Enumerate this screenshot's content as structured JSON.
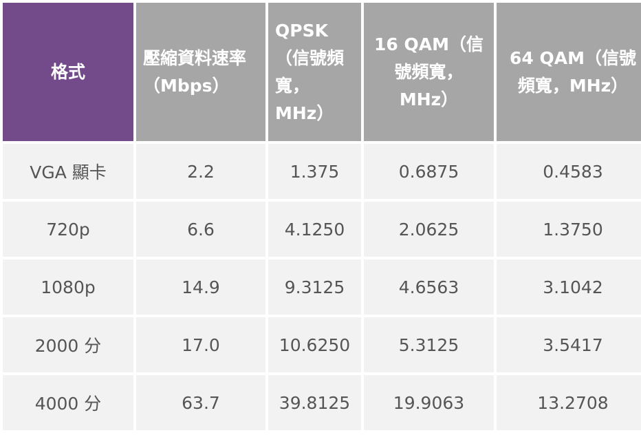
{
  "table": {
    "headers": [
      "格式",
      "壓縮資料速率（Mbps）",
      "QPSK（信號頻寬，MHz）",
      "16 QAM（信號頻寬，MHz）",
      "64 QAM（信號頻寬，MHz）"
    ],
    "rows": [
      [
        "VGA 顯卡",
        "2.2",
        "1.375",
        "0.6875",
        "0.4583"
      ],
      [
        "720p",
        "6.6",
        "4.1250",
        "2.0625",
        "1.3750"
      ],
      [
        "1080p",
        "14.9",
        "9.3125",
        "4.6563",
        "3.1042"
      ],
      [
        "2000 分",
        "17.0",
        "10.6250",
        "5.3125",
        "3.5417"
      ],
      [
        "4000 分",
        "63.7",
        "39.8125",
        "19.9063",
        "13.2708"
      ]
    ]
  },
  "colors": {
    "header_accent": "#734b8a",
    "header_gray": "#a6a6a6",
    "cell_background": "#f2f2f2",
    "cell_text": "#555555",
    "header_text": "#ffffff"
  }
}
